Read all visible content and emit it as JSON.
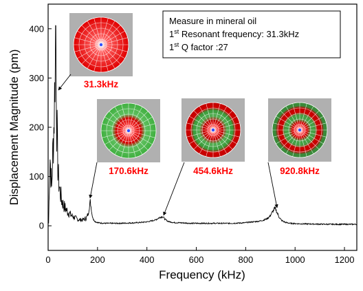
{
  "chart_data": {
    "type": "line",
    "xlabel": "Frequency (kHz)",
    "ylabel": "Displacement Magnitude (pm)",
    "xlim": [
      0,
      1250
    ],
    "ylim": [
      -50,
      450
    ],
    "x_ticks": [
      "0",
      "200",
      "400",
      "600",
      "800",
      "1000",
      "1200"
    ],
    "y_ticks": [
      "0",
      "100",
      "200",
      "300",
      "400"
    ],
    "series": [
      {
        "color": "#000000",
        "points": [
          [
            2,
            5
          ],
          [
            5,
            90
          ],
          [
            8,
            140
          ],
          [
            11,
            110
          ],
          [
            14,
            75
          ],
          [
            17,
            120
          ],
          [
            20,
            160
          ],
          [
            23,
            200
          ],
          [
            26,
            260
          ],
          [
            28,
            330
          ],
          [
            30,
            390
          ],
          [
            31.3,
            410
          ],
          [
            33,
            330
          ],
          [
            35,
            220
          ],
          [
            38,
            140
          ],
          [
            42,
            95
          ],
          [
            48,
            70
          ],
          [
            55,
            52
          ],
          [
            62,
            42
          ],
          [
            70,
            35
          ],
          [
            80,
            28
          ],
          [
            90,
            23
          ],
          [
            100,
            19
          ],
          [
            110,
            16
          ],
          [
            120,
            13
          ],
          [
            130,
            12
          ],
          [
            140,
            12
          ],
          [
            150,
            14
          ],
          [
            158,
            18
          ],
          [
            163,
            25
          ],
          [
            167,
            38
          ],
          [
            170.6,
            50
          ],
          [
            174,
            38
          ],
          [
            178,
            22
          ],
          [
            184,
            12
          ],
          [
            192,
            8
          ],
          [
            205,
            6
          ],
          [
            230,
            5
          ],
          [
            260,
            5
          ],
          [
            290,
            5
          ],
          [
            320,
            5.5
          ],
          [
            350,
            6
          ],
          [
            380,
            7
          ],
          [
            400,
            8
          ],
          [
            420,
            10
          ],
          [
            435,
            12
          ],
          [
            445,
            15
          ],
          [
            452,
            17
          ],
          [
            457,
            18
          ],
          [
            462,
            19
          ],
          [
            467,
            17
          ],
          [
            474,
            13
          ],
          [
            482,
            10
          ],
          [
            492,
            8
          ],
          [
            510,
            6.5
          ],
          [
            540,
            6
          ],
          [
            580,
            5
          ],
          [
            620,
            5
          ],
          [
            660,
            5
          ],
          [
            700,
            5
          ],
          [
            740,
            5
          ],
          [
            770,
            5.5
          ],
          [
            795,
            6
          ],
          [
            810,
            7
          ],
          [
            830,
            8
          ],
          [
            850,
            9
          ],
          [
            870,
            11
          ],
          [
            885,
            14
          ],
          [
            897,
            19
          ],
          [
            905,
            25
          ],
          [
            912,
            31
          ],
          [
            918,
            35
          ],
          [
            922,
            33
          ],
          [
            928,
            26
          ],
          [
            935,
            18
          ],
          [
            945,
            11
          ],
          [
            960,
            7
          ],
          [
            980,
            5
          ],
          [
            1020,
            4
          ],
          [
            1080,
            3.5
          ],
          [
            1140,
            3
          ],
          [
            1200,
            3
          ],
          [
            1250,
            3
          ]
        ]
      }
    ],
    "annotations": [
      {
        "text": "31.3kHz",
        "x": 31.3,
        "y": 410,
        "color": "#ff0000"
      },
      {
        "text": "170.6kHz",
        "x": 170.6,
        "y": 50,
        "color": "#ff0000"
      },
      {
        "text": "454.6kHz",
        "x": 454.6,
        "y": 18,
        "color": "#ff0000"
      },
      {
        "text": "920.8kHz",
        "x": 920.8,
        "y": 35,
        "color": "#ff0000"
      }
    ],
    "info_box": {
      "line1": "Measure in mineral oil",
      "line2_pre": "1",
      "line2_sup": "st",
      "line2_post": " Resonant frequency: 31.3kHz",
      "line3_pre": "1",
      "line3_sup": "st",
      "line3_post": " Q factor :27"
    },
    "mode_shapes": [
      {
        "name": "mode-1",
        "pattern": "red-center"
      },
      {
        "name": "mode-2",
        "pattern": "green-ring"
      },
      {
        "name": "mode-3",
        "pattern": "red-green-red"
      },
      {
        "name": "mode-4",
        "pattern": "red-green-red-green"
      }
    ],
    "grid": false,
    "legend": "none"
  }
}
